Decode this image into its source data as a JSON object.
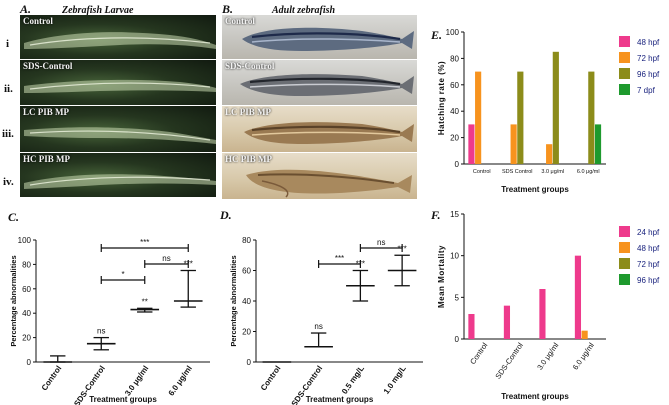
{
  "panels": {
    "A": {
      "letter": "A.",
      "title": "Zebrafish Larvae"
    },
    "B": {
      "letter": "B.",
      "title": "Adult zebrafish"
    },
    "C": {
      "letter": "C."
    },
    "D": {
      "letter": "D."
    },
    "E": {
      "letter": "E."
    },
    "F": {
      "letter": "F."
    }
  },
  "rows": [
    {
      "numeral": "i",
      "label": "Control"
    },
    {
      "numeral": "ii.",
      "label": "SDS-Control"
    },
    {
      "numeral": "iii.",
      "label": "LC PIB MP"
    },
    {
      "numeral": "iv.",
      "label": "HC PIB MP"
    }
  ],
  "chart_data": [
    {
      "id": "C",
      "type": "scatter",
      "ylabel": "Percentage abnormalities",
      "xlabel": "Treatment groups",
      "categories": [
        "Control",
        "SDS-Control",
        "3.0 μg/ml",
        "6.0 μg/ml"
      ],
      "means": [
        0,
        15,
        43,
        50
      ],
      "err_low": [
        0,
        10,
        41,
        45
      ],
      "err_high": [
        5,
        20,
        44,
        75
      ],
      "ylim": [
        0,
        100
      ],
      "yticks": [
        "0",
        "20",
        "40",
        "60",
        "80",
        "100"
      ],
      "point_labels": [
        "",
        "ns",
        "**",
        "***"
      ],
      "brackets": [
        {
          "from": 1,
          "to": 2,
          "label": "*"
        },
        {
          "from": 2,
          "to": 3,
          "label": "ns"
        },
        {
          "from": 1,
          "to": 3,
          "label": "***"
        }
      ]
    },
    {
      "id": "D",
      "type": "scatter",
      "ylabel": "Percentage abnormalities",
      "xlabel": "Treatment groups",
      "categories": [
        "Control",
        "SDS-Control",
        "0.5 mg/L",
        "1.0 mg/L"
      ],
      "means": [
        0,
        10,
        50,
        60
      ],
      "err_low": [
        0,
        10,
        40,
        50
      ],
      "err_high": [
        0,
        19,
        60,
        70
      ],
      "ylim": [
        0,
        80
      ],
      "yticks": [
        "0",
        "20",
        "40",
        "60",
        "80"
      ],
      "point_labels": [
        "",
        "ns",
        "***",
        "***"
      ],
      "brackets": [
        {
          "from": 1,
          "to": 2,
          "label": "***"
        },
        {
          "from": 2,
          "to": 3,
          "label": "ns"
        }
      ]
    },
    {
      "id": "E",
      "type": "bar",
      "ylabel": "Hatching rate (%)",
      "xlabel": "Treatment groups",
      "categories": [
        "Control",
        "SDS Control",
        "3.0 μg/ml",
        "6.0 μg/ml"
      ],
      "series": [
        {
          "name": "48 hpf",
          "color": "#ee3a8c",
          "values": [
            30,
            0,
            0,
            0
          ]
        },
        {
          "name": "72 hpf",
          "color": "#f7931e",
          "values": [
            70,
            30,
            15,
            0
          ]
        },
        {
          "name": "96 hpf",
          "color": "#8c8c1a",
          "values": [
            0,
            70,
            85,
            70
          ]
        },
        {
          "name": "7 dpf",
          "color": "#1e9a2e",
          "values": [
            0,
            0,
            0,
            30
          ]
        }
      ],
      "ylim": [
        0,
        100
      ],
      "yticks": [
        "0",
        "20",
        "40",
        "60",
        "80",
        "100"
      ],
      "legend": "right"
    },
    {
      "id": "F",
      "type": "bar",
      "ylabel": "Mean Mortality",
      "xlabel": "Treatment groups",
      "categories": [
        "Control",
        "SDS-Control",
        "3.0 μg/ml",
        "6.0 μg/ml"
      ],
      "series": [
        {
          "name": "24 hpf",
          "color": "#ee3a8c",
          "values": [
            3,
            4,
            6,
            10
          ]
        },
        {
          "name": "48 hpf",
          "color": "#f7931e",
          "values": [
            0,
            0,
            0,
            1
          ]
        },
        {
          "name": "72 hpf",
          "color": "#8c8c1a",
          "values": [
            0,
            0,
            0,
            0
          ]
        },
        {
          "name": "96 hpf",
          "color": "#1e9a2e",
          "values": [
            0,
            0,
            0,
            0
          ]
        }
      ],
      "ylim": [
        0,
        15
      ],
      "yticks": [
        "0",
        "5",
        "10",
        "15"
      ],
      "legend": "right"
    }
  ]
}
